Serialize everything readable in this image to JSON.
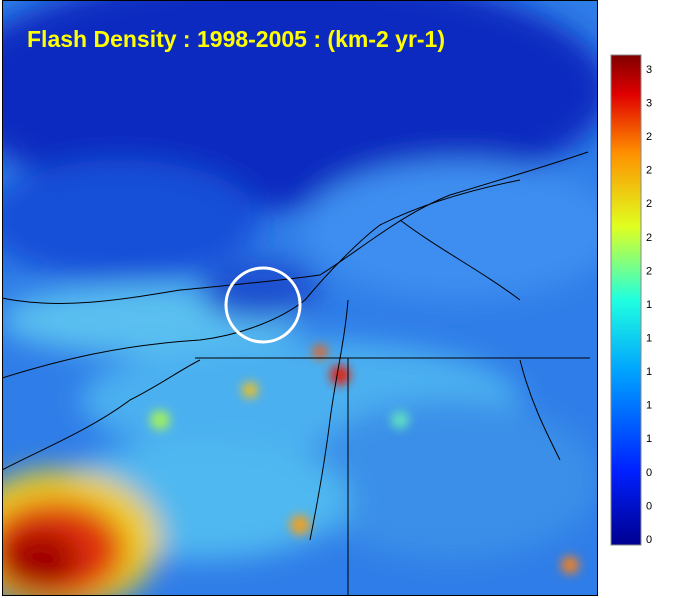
{
  "title": "Flash Density : 1998-2005 : (km-2 yr-1)",
  "colorbar": {
    "labels": [
      "3",
      "3",
      "2",
      "2",
      "2",
      "2",
      "2",
      "1",
      "1",
      "1",
      "1",
      "1",
      "0",
      "0",
      "0"
    ]
  }
}
